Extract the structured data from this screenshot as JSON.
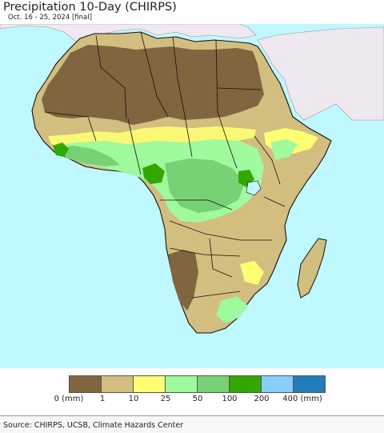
{
  "header": {
    "title": "Precipitation 10-Day (CHIRPS)",
    "subtitle": "Oct. 16 - 25, 2024 [final]"
  },
  "colors": {
    "ocean": "#bff8ff",
    "outside_region": "#efe8f0",
    "border": "#111111"
  },
  "legend": {
    "classes": [
      {
        "color": "#80653f"
      },
      {
        "color": "#d2be7e"
      },
      {
        "color": "#ffff73"
      },
      {
        "color": "#9ffa9d"
      },
      {
        "color": "#76d274"
      },
      {
        "color": "#31a800"
      },
      {
        "color": "#87cefa"
      },
      {
        "color": "#1f7dbb"
      }
    ],
    "labels": [
      "0 (mm)",
      "1",
      "10",
      "25",
      "50",
      "100",
      "200",
      "400 (mm)"
    ]
  },
  "footer": {
    "source": "Source: CHIRPS, UCSB, Climate Hazards Center"
  }
}
